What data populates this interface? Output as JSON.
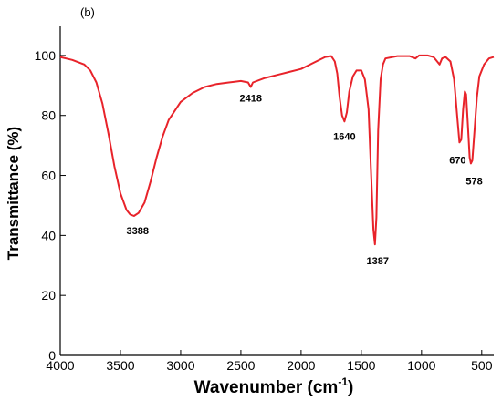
{
  "panel_label": "(b)",
  "chart_data": {
    "type": "line",
    "title": "",
    "xlabel": "Wavenumber (cm",
    "xlabel_superscript": "-1",
    "xlabel_close": ")",
    "ylabel": "Transmittance (%)",
    "xlim": [
      4000,
      400
    ],
    "ylim": [
      0,
      110
    ],
    "x_reversed": true,
    "x_ticks": [
      4000,
      3500,
      3000,
      2500,
      2000,
      1500,
      1000,
      500
    ],
    "y_ticks": [
      0,
      20,
      40,
      60,
      80,
      100
    ],
    "grid": false,
    "line_color": "#e8232a",
    "series": [
      {
        "points": [
          [
            4000,
            99.5
          ],
          [
            3900,
            98.5
          ],
          [
            3800,
            97
          ],
          [
            3750,
            95
          ],
          [
            3700,
            91
          ],
          [
            3650,
            84
          ],
          [
            3600,
            74
          ],
          [
            3550,
            63
          ],
          [
            3500,
            54
          ],
          [
            3450,
            48.5
          ],
          [
            3420,
            47
          ],
          [
            3388,
            46.5
          ],
          [
            3350,
            47.5
          ],
          [
            3300,
            51
          ],
          [
            3250,
            58
          ],
          [
            3200,
            66
          ],
          [
            3150,
            73
          ],
          [
            3100,
            78.5
          ],
          [
            3000,
            84.5
          ],
          [
            2900,
            87.5
          ],
          [
            2800,
            89.5
          ],
          [
            2700,
            90.5
          ],
          [
            2600,
            91
          ],
          [
            2500,
            91.5
          ],
          [
            2440,
            91
          ],
          [
            2418,
            89.5
          ],
          [
            2400,
            91
          ],
          [
            2300,
            92.5
          ],
          [
            2200,
            93.5
          ],
          [
            2100,
            94.5
          ],
          [
            2000,
            95.5
          ],
          [
            1900,
            97.5
          ],
          [
            1800,
            99.5
          ],
          [
            1750,
            99.8
          ],
          [
            1720,
            98
          ],
          [
            1700,
            94
          ],
          [
            1680,
            86
          ],
          [
            1660,
            80
          ],
          [
            1640,
            78
          ],
          [
            1620,
            81
          ],
          [
            1600,
            88
          ],
          [
            1570,
            93
          ],
          [
            1540,
            95
          ],
          [
            1500,
            95
          ],
          [
            1470,
            92
          ],
          [
            1440,
            82
          ],
          [
            1420,
            62
          ],
          [
            1400,
            42
          ],
          [
            1387,
            37
          ],
          [
            1375,
            46
          ],
          [
            1360,
            75
          ],
          [
            1340,
            92
          ],
          [
            1320,
            97
          ],
          [
            1300,
            99
          ],
          [
            1200,
            99.8
          ],
          [
            1100,
            99.8
          ],
          [
            1050,
            99
          ],
          [
            1020,
            100
          ],
          [
            950,
            100
          ],
          [
            900,
            99.5
          ],
          [
            870,
            98
          ],
          [
            850,
            97
          ],
          [
            830,
            99
          ],
          [
            800,
            99.5
          ],
          [
            760,
            98
          ],
          [
            730,
            92
          ],
          [
            700,
            78
          ],
          [
            685,
            71
          ],
          [
            670,
            72
          ],
          [
            655,
            82
          ],
          [
            640,
            88
          ],
          [
            630,
            87
          ],
          [
            615,
            77
          ],
          [
            600,
            66
          ],
          [
            590,
            64
          ],
          [
            578,
            65
          ],
          [
            560,
            75
          ],
          [
            540,
            86
          ],
          [
            520,
            93
          ],
          [
            480,
            97
          ],
          [
            440,
            99
          ],
          [
            400,
            99.5
          ]
        ]
      }
    ],
    "annotations": [
      {
        "text": "3388",
        "x": 3388,
        "y": 46.5
      },
      {
        "text": "2418",
        "x": 2418,
        "y": 89.5
      },
      {
        "text": "1640",
        "x": 1640,
        "y": 78
      },
      {
        "text": "1387",
        "x": 1387,
        "y": 37
      },
      {
        "text": "670",
        "x": 670,
        "y": 71
      },
      {
        "text": "578",
        "x": 578,
        "y": 64
      }
    ]
  }
}
